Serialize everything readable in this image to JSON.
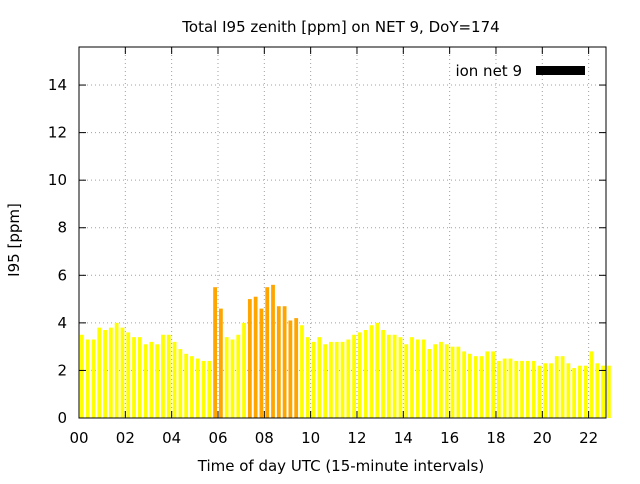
{
  "chart_data": {
    "type": "bar",
    "title": "Total I95 zenith [ppm] on NET 9, DoY=174",
    "xlabel": "Time of day UTC (15-minute intervals)",
    "ylabel": "I95 [ppm]",
    "xlim": [
      0,
      22.75
    ],
    "ylim": [
      0,
      15.6
    ],
    "xticks": [
      0,
      2,
      4,
      6,
      8,
      10,
      12,
      14,
      16,
      18,
      20,
      22
    ],
    "xtick_labels": [
      "00",
      "02",
      "04",
      "06",
      "08",
      "10",
      "12",
      "14",
      "16",
      "18",
      "20",
      "22"
    ],
    "yticks": [
      0,
      2,
      4,
      6,
      8,
      10,
      12,
      14
    ],
    "ytick_labels": [
      "0",
      "2",
      "4",
      "6",
      "8",
      "10",
      "12",
      "14"
    ],
    "grid": true,
    "legend": {
      "position": "top-right",
      "entries": [
        {
          "label": "ion net 9",
          "color": "#000000"
        }
      ]
    },
    "colors": {
      "normal": "#ffff00",
      "elevated": "#ffa500",
      "legend_swatch": "#000000"
    },
    "bar_interval_hours": 0.25,
    "series": [
      {
        "name": "ion net 9",
        "values": [
          3.5,
          3.3,
          3.3,
          3.8,
          3.7,
          3.8,
          4.0,
          3.8,
          3.6,
          3.4,
          3.4,
          3.1,
          3.2,
          3.1,
          3.5,
          3.5,
          3.2,
          2.9,
          2.7,
          2.6,
          2.5,
          2.4,
          2.4,
          5.5,
          4.6,
          3.4,
          3.3,
          3.5,
          4.0,
          5.0,
          5.1,
          4.6,
          5.5,
          5.6,
          4.7,
          4.7,
          4.1,
          4.2,
          3.9,
          3.4,
          3.2,
          3.4,
          3.1,
          3.2,
          3.2,
          3.2,
          3.3,
          3.5,
          3.6,
          3.7,
          3.9,
          4.0,
          3.7,
          3.5,
          3.5,
          3.4,
          3.1,
          3.4,
          3.3,
          3.3,
          2.9,
          3.1,
          3.2,
          3.1,
          3.0,
          3.0,
          2.8,
          2.7,
          2.6,
          2.6,
          2.8,
          2.8,
          2.4,
          2.5,
          2.5,
          2.4,
          2.4,
          2.4,
          2.4,
          2.2,
          2.3,
          2.3,
          2.6,
          2.6,
          2.3,
          2.1,
          2.2,
          2.2,
          2.8,
          2.3,
          2.2,
          2.2
        ],
        "elevated_indices": [
          23,
          24,
          29,
          30,
          31,
          32,
          33,
          34,
          35,
          36,
          37
        ]
      }
    ]
  }
}
